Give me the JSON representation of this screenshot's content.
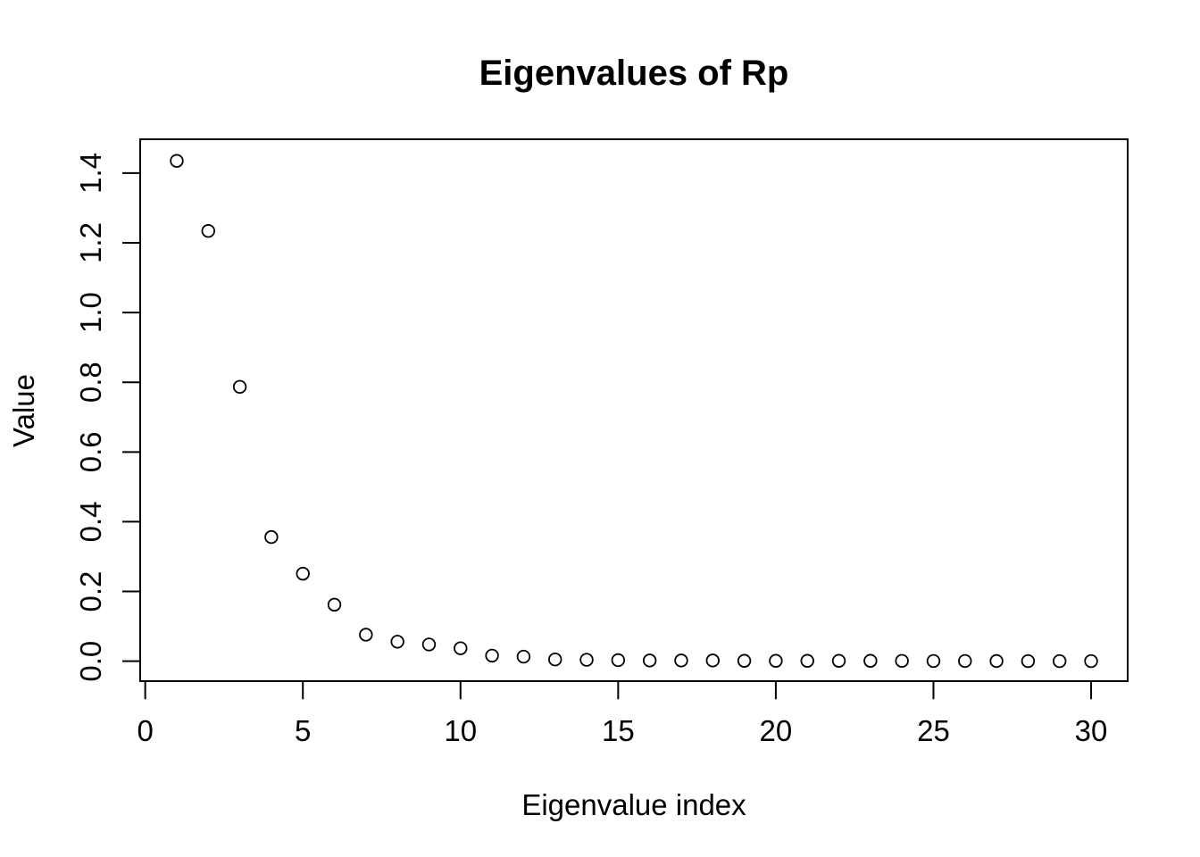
{
  "figure": {
    "background_color": "#ffffff",
    "foreground_color": "#000000"
  },
  "chart_data": {
    "type": "scatter",
    "title": "Eigenvalues of Rp",
    "xlabel": "Eigenvalue index",
    "ylabel": "Value",
    "x": [
      1,
      2,
      3,
      4,
      5,
      6,
      7,
      8,
      9,
      10,
      11,
      12,
      13,
      14,
      15,
      16,
      17,
      18,
      19,
      20,
      21,
      22,
      23,
      24,
      25,
      26,
      27,
      28,
      29,
      30
    ],
    "values": [
      1.435,
      1.234,
      0.787,
      0.356,
      0.251,
      0.162,
      0.076,
      0.056,
      0.048,
      0.037,
      0.016,
      0.013,
      0.005,
      0.004,
      0.003,
      0.002,
      0.002,
      0.002,
      0.001,
      0.001,
      0.001,
      0.001,
      0.001,
      0.0008,
      0.0006,
      0.0005,
      0.0004,
      0.0003,
      0.0002,
      0.0002
    ],
    "x_ticks": [
      0,
      5,
      10,
      15,
      20,
      25,
      30
    ],
    "y_ticks": [
      0.0,
      0.2,
      0.4,
      0.6,
      0.8,
      1.0,
      1.2,
      1.4
    ],
    "y_tick_labels": [
      "0.0",
      "0.2",
      "0.4",
      "0.6",
      "0.8",
      "1.0",
      "1.2",
      "1.4"
    ],
    "xlim": [
      -0.16,
      31.16
    ],
    "ylim": [
      -0.058,
      1.497
    ],
    "grid": false,
    "legend": false,
    "marker": "open-circle",
    "marker_color": "#000000",
    "axis_color": "#000000",
    "plot_background": "#ffffff"
  }
}
